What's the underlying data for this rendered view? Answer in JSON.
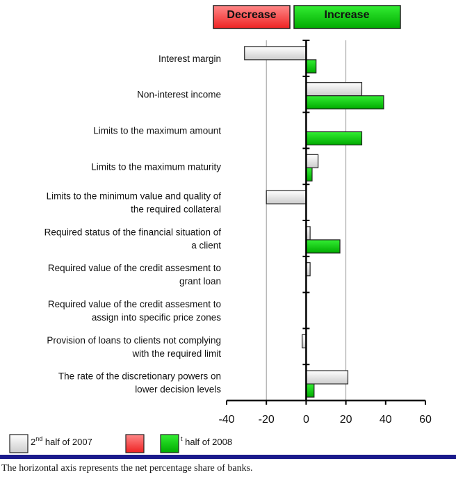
{
  "chart_data": {
    "type": "bar",
    "orientation": "horizontal",
    "header_buttons": [
      "Decrease",
      "Increase"
    ],
    "categories": [
      [
        "Interest margin"
      ],
      [
        "Non-interest income"
      ],
      [
        "Limits to the maximum amount"
      ],
      [
        "Limits to the maximum maturity"
      ],
      [
        "Limits to the minimum value and quality of",
        "the required collateral"
      ],
      [
        "Required status of the financial situation of",
        "a client"
      ],
      [
        "Required value of the credit assesment to",
        "grant loan"
      ],
      [
        "Required value of the credit assesment to",
        "assign into specific price zones"
      ],
      [
        "Provision of loans to clients not complying",
        "with the required limit"
      ],
      [
        "The rate of the discretionary powers on",
        "lower decision levels"
      ]
    ],
    "series": [
      {
        "name": "2nd half of 2007",
        "values": [
          -31,
          28,
          0,
          6,
          -20,
          2,
          2,
          0,
          -2,
          21
        ]
      },
      {
        "name": "1st half of 2008",
        "values": [
          5,
          39,
          28,
          3,
          0,
          17,
          0,
          0,
          0,
          4
        ]
      }
    ],
    "xlim": [
      -40,
      60
    ],
    "xticks": [
      "-40",
      "-20",
      "0",
      "20",
      "40",
      "60"
    ],
    "xgrid": [
      -20,
      20
    ],
    "colors": {
      "series1": "#e6e6e6",
      "series2": "#11cc11",
      "decrease": "#ff5555",
      "increase": "#11cc11",
      "caption_bar": "#1a1a8c"
    },
    "legend": {
      "placement": "bottom-left",
      "items": [
        {
          "sup": "nd",
          "before": "2",
          "after": " half of 2007",
          "color": "#e6e6e6"
        },
        {
          "sup": "",
          "before": "",
          "after": "",
          "color": "#ff5555"
        },
        {
          "sup": "t",
          "before": "",
          "after": " half of 2008",
          "color": "#11cc11"
        }
      ]
    },
    "caption": "The horizontal axis represents the net percentage share of banks."
  }
}
